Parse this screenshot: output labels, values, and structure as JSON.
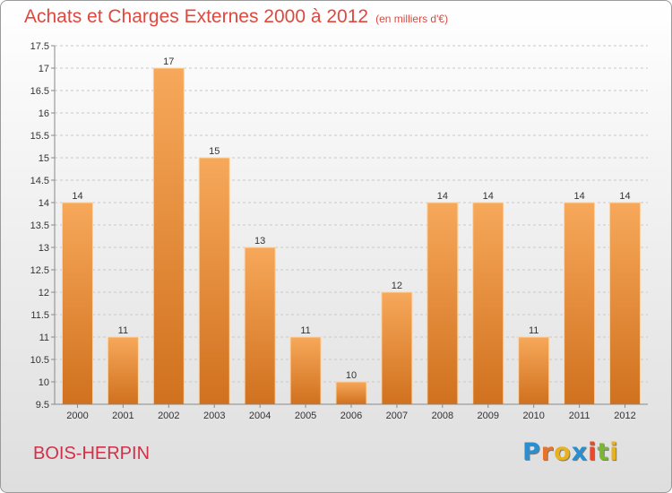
{
  "header": {
    "title": "Achats et Charges Externes 2000 à 2012",
    "unit": "(en milliers d'€)"
  },
  "footer": {
    "commune": "BOIS-HERPIN",
    "logo_letters": [
      "P",
      "r",
      "o",
      "x",
      "i",
      "t",
      "i"
    ],
    "logo_colors": [
      "#2a8fd0",
      "#e8732a",
      "#e8b21e",
      "#2a8fd0",
      "#e84a2a",
      "#7ab833",
      "#e8b21e"
    ]
  },
  "colors": {
    "bar_top": "#f7a85a",
    "bar_bottom": "#d0711e",
    "bar_edge": "#ffd3a0",
    "grid": "#c8c8c8",
    "axis": "#888888"
  },
  "chart_data": {
    "type": "bar",
    "categories": [
      "2000",
      "2001",
      "2002",
      "2003",
      "2004",
      "2005",
      "2006",
      "2007",
      "2008",
      "2009",
      "2010",
      "2011",
      "2012"
    ],
    "values": [
      14,
      11,
      17,
      15,
      13,
      11,
      10,
      12,
      14,
      14,
      11,
      14,
      14
    ],
    "data_labels": [
      "14",
      "11",
      "17",
      "15",
      "13",
      "11",
      "10",
      "12",
      "14",
      "14",
      "11",
      "14",
      "14"
    ],
    "yticks": [
      9.5,
      10,
      10.5,
      11,
      11.5,
      12,
      12.5,
      13,
      13.5,
      14,
      14.5,
      15,
      15.5,
      16,
      16.5,
      17,
      17.5
    ],
    "ytick_labels": [
      "9.5",
      "10",
      "10.5",
      "11",
      "11.5",
      "12",
      "12.5",
      "13",
      "13.5",
      "14",
      "14.5",
      "15",
      "15.5",
      "16",
      "16.5",
      "17",
      "17.5"
    ],
    "ylim": [
      9.5,
      17.5
    ],
    "grid": true,
    "title": "Achats et Charges Externes 2000 à 2012",
    "xlabel": "",
    "ylabel": ""
  }
}
